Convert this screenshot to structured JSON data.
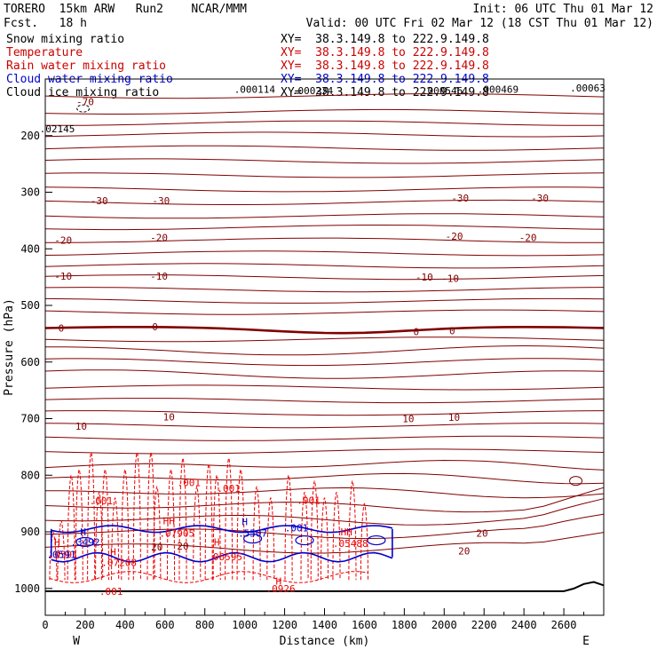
{
  "header": {
    "model_line": "TORERO  15km ARW   Run2    NCAR/MMM",
    "fcst_line": "Fcst.   18 h",
    "init_line": "Init: 06 UTC Thu 01 Mar 12",
    "valid_line": "Valid: 00 UTC Fri 02 Mar 12 (18 CST Thu 01 Mar 12)"
  },
  "legend": [
    {
      "name": "Snow mixing ratio",
      "xy": "XY=  38.3.149.8 to 222.9.149.8",
      "color": "#000000"
    },
    {
      "name": "Temperature",
      "xy": "XY=  38.3.149.8 to 222.9.149.8",
      "color": "#cc0000"
    },
    {
      "name": "Rain water mixing ratio",
      "xy": "XY=  38.3.149.8 to 222.9.149.8",
      "color": "#cc0000"
    },
    {
      "name": "Cloud water mixing ratio",
      "xy": "XY=  38.3.149.8 to 222.9.149.8",
      "color": "#0000cc"
    },
    {
      "name": "Cloud ice mixing ratio",
      "xy": "XY=  38.3.149.8 to 222.9.149.8",
      "color": "#000000"
    }
  ],
  "colors": {
    "temperature": "#800000",
    "freezing_line": "#800000",
    "rain": "#ee0000",
    "cloud_water": "#0000cc",
    "terrain": "#000000",
    "axis": "#000000"
  },
  "chart_data": {
    "type": "cross-section",
    "xlabel": "Distance (km)",
    "ylabel": "Pressure (hPa)",
    "xlim": [
      0,
      2800
    ],
    "ylim": [
      1050,
      100
    ],
    "x_ticks": [
      0,
      200,
      400,
      600,
      800,
      1000,
      1200,
      1400,
      1600,
      1800,
      2000,
      2200,
      2400,
      2600
    ],
    "y_ticks": [
      200,
      300,
      400,
      500,
      600,
      700,
      800,
      900,
      1000
    ],
    "left_end": "W",
    "right_end": "E",
    "temperature_labels": [
      {
        "text": "-70",
        "x": 200,
        "p": 140
      },
      {
        "text": "-30",
        "x": 270,
        "p": 315
      },
      {
        "text": "-30",
        "x": 580,
        "p": 315
      },
      {
        "text": "-30",
        "x": 2080,
        "p": 310
      },
      {
        "text": "-30",
        "x": 2480,
        "p": 310
      },
      {
        "text": "-20",
        "x": 90,
        "p": 385
      },
      {
        "text": "-20",
        "x": 570,
        "p": 380
      },
      {
        "text": "-20",
        "x": 2050,
        "p": 378
      },
      {
        "text": "-20",
        "x": 2420,
        "p": 380
      },
      {
        "text": "-10",
        "x": 90,
        "p": 448
      },
      {
        "text": "-10",
        "x": 570,
        "p": 448
      },
      {
        "text": "-10",
        "x": 1900,
        "p": 450
      },
      {
        "text": "-10",
        "x": 2030,
        "p": 452
      },
      {
        "text": "0",
        "x": 80,
        "p": 540
      },
      {
        "text": "0",
        "x": 550,
        "p": 538
      },
      {
        "text": "0",
        "x": 1860,
        "p": 546
      },
      {
        "text": "0",
        "x": 2040,
        "p": 545
      },
      {
        "text": "10",
        "x": 180,
        "p": 713
      },
      {
        "text": "10",
        "x": 620,
        "p": 697
      },
      {
        "text": "10",
        "x": 1820,
        "p": 700
      },
      {
        "text": "10",
        "x": 2050,
        "p": 698
      },
      {
        "text": "20",
        "x": 560,
        "p": 927
      },
      {
        "text": "20",
        "x": 690,
        "p": 925
      },
      {
        "text": "20",
        "x": 2190,
        "p": 902
      },
      {
        "text": "20",
        "x": 2100,
        "p": 934
      }
    ],
    "rain_labels": [
      {
        "text": ".001",
        "x": 280,
        "p": 845
      },
      {
        "text": ".001",
        "x": 720,
        "p": 813
      },
      {
        "text": ".001",
        "x": 920,
        "p": 823
      },
      {
        "text": ".001",
        "x": 1320,
        "p": 844
      },
      {
        "text": ".001",
        "x": 330,
        "p": 1005
      },
      {
        "text": ".07208",
        "x": 370,
        "p": 954
      },
      {
        "text": ".06595",
        "x": 900,
        "p": 944
      },
      {
        "text": ".0926",
        "x": 1180,
        "p": 1000
      },
      {
        "text": ".07905",
        "x": 660,
        "p": 902
      },
      {
        "text": ".05488",
        "x": 1530,
        "p": 920
      },
      {
        "text": ".0591",
        "x": 90,
        "p": 940
      }
    ],
    "cloud_labels": [
      {
        "text": ".3492",
        "x": 200,
        "p": 918
      },
      {
        "text": ".5507",
        "x": 1040,
        "p": 902
      },
      {
        "text": ".001",
        "x": 1260,
        "p": 893
      },
      {
        "text": ".0591",
        "x": 80,
        "p": 940
      }
    ],
    "snow_labels": [
      {
        "text": ".000114",
        "x": 1050,
        "p": 118
      },
      {
        "text": ".000234",
        "x": 1340,
        "p": 120
      },
      {
        "text": ".000546",
        "x": 1990,
        "p": 120
      },
      {
        "text": ".000469",
        "x": 2270,
        "p": 118
      },
      {
        "text": ".00063",
        "x": 2720,
        "p": 116
      },
      {
        "text": ".02145",
        "x": 60,
        "p": 188
      }
    ],
    "h_markers": [
      {
        "text": "H",
        "x": 190,
        "p": 900,
        "kind": "cloud"
      },
      {
        "text": "HH",
        "x": 620,
        "p": 880,
        "kind": "rain"
      },
      {
        "text": "H",
        "x": 1000,
        "p": 882,
        "kind": "cloud"
      },
      {
        "text": "HH",
        "x": 1510,
        "p": 900,
        "kind": "rain"
      },
      {
        "text": "H",
        "x": 340,
        "p": 935,
        "kind": "rain"
      },
      {
        "text": "H",
        "x": 860,
        "p": 918,
        "kind": "rain"
      },
      {
        "text": "H",
        "x": 1170,
        "p": 987,
        "kind": "rain"
      },
      {
        "text": "H",
        "x": 60,
        "p": 918,
        "kind": "rain"
      }
    ]
  }
}
